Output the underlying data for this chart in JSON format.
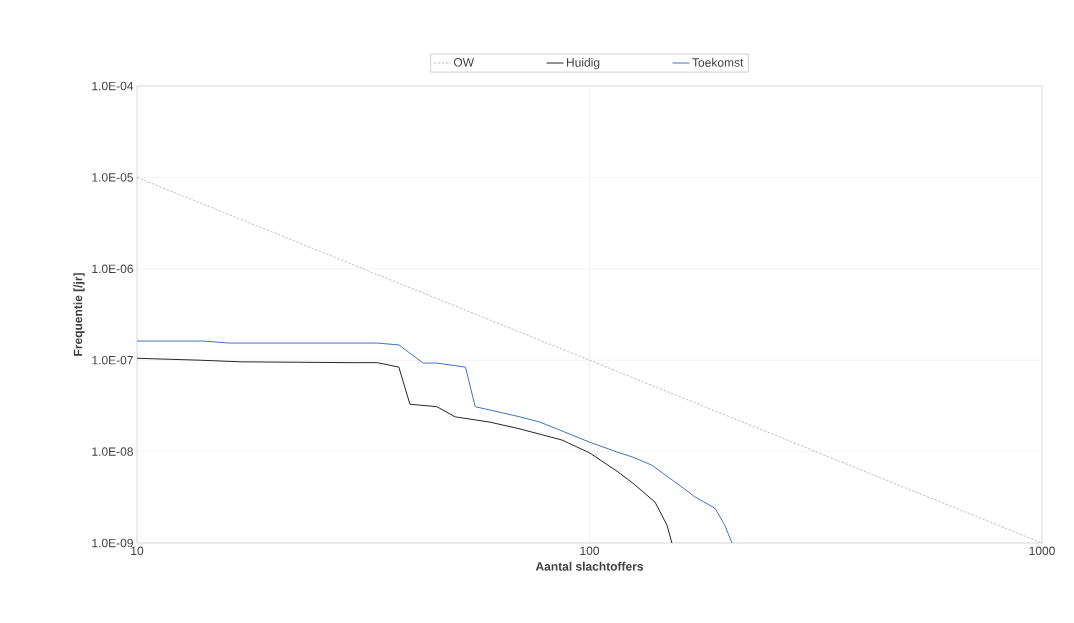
{
  "chart_data": {
    "type": "line",
    "xlabel": "Aantal slachtoffers",
    "ylabel": "Frequentie [/jr]",
    "log": "xy",
    "grid": true,
    "legend": "top",
    "xlim": [
      10,
      1000
    ],
    "xticks": [
      10,
      100,
      1000
    ],
    "ylim": [
      1e-09,
      0.0001
    ],
    "yticks": [
      {
        "value": 1e-09,
        "label": "1.0E-09"
      },
      {
        "value": 1e-08,
        "label": "1.0E-08"
      },
      {
        "value": 1e-07,
        "label": "1.0E-07"
      },
      {
        "value": 1e-06,
        "label": "1.0E-06"
      },
      {
        "value": 1e-05,
        "label": "1.0E-05"
      },
      {
        "value": 0.0001,
        "label": "1.0E-04"
      }
    ],
    "series": [
      {
        "name": "OW",
        "color": "#a6a6a6",
        "line_style": "dashed",
        "x": [
          10,
          1000
        ],
        "values": [
          1e-05,
          1e-09
        ]
      },
      {
        "name": "Huidig",
        "color": "#262626",
        "line_style": "solid",
        "x": [
          10,
          13.8,
          17,
          30,
          34,
          37.9,
          40.1,
          46.0,
          50.5,
          60.3,
          70.2,
          86.9,
          100,
          115,
          124.8,
          139.6,
          148.3,
          152.1
        ],
        "values": [
          1.05e-07,
          1e-07,
          9.6e-08,
          9.4e-08,
          9.4e-08,
          8.4e-08,
          3.3e-08,
          3.1e-08,
          2.4e-08,
          2.1e-08,
          1.77e-08,
          1.34e-08,
          9.7e-09,
          6.1e-09,
          4.5e-09,
          2.8e-09,
          1.57e-09,
          1e-09
        ]
      },
      {
        "name": "Toekomst",
        "color": "#4472c4",
        "line_style": "solid",
        "x": [
          10,
          14.0,
          16.0,
          34,
          37.9,
          42.9,
          46.0,
          53.2,
          55.9,
          60.3,
          70.2,
          77.8,
          100,
          115,
          124.8,
          137.4,
          150.6,
          160,
          171,
          189.4,
          199,
          206.5
        ],
        "values": [
          1.62e-07,
          1.62e-07,
          1.54e-07,
          1.54e-07,
          1.47e-07,
          9.3e-08,
          9.3e-08,
          8.4e-08,
          3.1e-08,
          2.85e-08,
          2.4e-08,
          2.1e-08,
          1.27e-08,
          9.9e-09,
          8.7e-09,
          7.1e-09,
          5.1e-09,
          4.1e-09,
          3.2e-09,
          2.4e-09,
          1.57e-09,
          1e-09
        ]
      }
    ]
  }
}
